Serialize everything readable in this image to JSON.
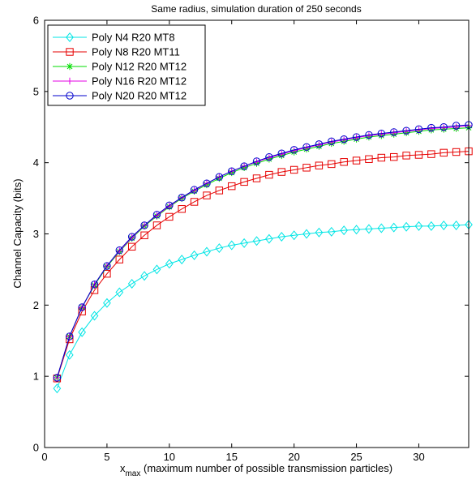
{
  "chart_data": {
    "type": "line",
    "title": "Same radius, simulation duration of 250 seconds",
    "xlabel_main": "x",
    "xlabel_sub": "max",
    "xlabel_rest": " (maximum number of possible transmission particles)",
    "ylabel": "Channel Capacity (bits)",
    "xlim": [
      0,
      34
    ],
    "ylim": [
      0,
      6
    ],
    "xticks": [
      0,
      5,
      10,
      15,
      20,
      25,
      30
    ],
    "yticks": [
      0,
      1,
      2,
      3,
      4,
      5,
      6
    ],
    "grid": false,
    "legend_position": "top-left",
    "x": [
      1,
      2,
      3,
      4,
      5,
      6,
      7,
      8,
      9,
      10,
      11,
      12,
      13,
      14,
      15,
      16,
      17,
      18,
      19,
      20,
      21,
      22,
      23,
      24,
      25,
      26,
      27,
      28,
      29,
      30,
      31,
      32,
      33,
      34
    ],
    "series": [
      {
        "name": "Poly N4 R20 MT8",
        "color": "#00e5e5",
        "marker": "diamond",
        "values": [
          0.83,
          1.3,
          1.62,
          1.85,
          2.03,
          2.18,
          2.3,
          2.41,
          2.5,
          2.58,
          2.64,
          2.7,
          2.75,
          2.8,
          2.84,
          2.87,
          2.9,
          2.93,
          2.96,
          2.98,
          3.0,
          3.02,
          3.03,
          3.05,
          3.06,
          3.07,
          3.08,
          3.09,
          3.1,
          3.11,
          3.11,
          3.12,
          3.12,
          3.13
        ]
      },
      {
        "name": "Poly N8 R20 MT11",
        "color": "#e60000",
        "marker": "square",
        "values": [
          0.97,
          1.52,
          1.91,
          2.21,
          2.44,
          2.64,
          2.82,
          2.98,
          3.12,
          3.24,
          3.35,
          3.45,
          3.54,
          3.61,
          3.67,
          3.73,
          3.78,
          3.83,
          3.87,
          3.9,
          3.93,
          3.96,
          3.98,
          4.01,
          4.03,
          4.05,
          4.07,
          4.08,
          4.1,
          4.11,
          4.12,
          4.14,
          4.15,
          4.16
        ]
      },
      {
        "name": "Poly N12 R20 MT12",
        "color": "#00dd00",
        "marker": "asterisk",
        "values": [
          0.98,
          1.56,
          1.97,
          2.28,
          2.54,
          2.75,
          2.94,
          3.11,
          3.25,
          3.38,
          3.5,
          3.6,
          3.69,
          3.78,
          3.86,
          3.93,
          3.99,
          4.05,
          4.1,
          4.15,
          4.19,
          4.23,
          4.27,
          4.3,
          4.33,
          4.36,
          4.38,
          4.4,
          4.42,
          4.44,
          4.46,
          4.47,
          4.48,
          4.49
        ]
      },
      {
        "name": "Poly N16 R20 MT12",
        "color": "#e600e6",
        "marker": "plus",
        "values": [
          0.98,
          1.56,
          1.97,
          2.29,
          2.55,
          2.76,
          2.95,
          3.12,
          3.26,
          3.39,
          3.51,
          3.61,
          3.71,
          3.8,
          3.88,
          3.95,
          4.01,
          4.07,
          4.12,
          4.17,
          4.21,
          4.25,
          4.29,
          4.32,
          4.35,
          4.38,
          4.4,
          4.42,
          4.44,
          4.46,
          4.48,
          4.49,
          4.5,
          4.52
        ]
      },
      {
        "name": "Poly N20 R20 MT12",
        "color": "#0000cc",
        "marker": "circle",
        "values": [
          0.98,
          1.56,
          1.97,
          2.29,
          2.55,
          2.77,
          2.96,
          3.12,
          3.27,
          3.4,
          3.51,
          3.62,
          3.71,
          3.8,
          3.88,
          3.95,
          4.02,
          4.08,
          4.13,
          4.18,
          4.22,
          4.26,
          4.3,
          4.33,
          4.36,
          4.39,
          4.41,
          4.43,
          4.45,
          4.47,
          4.49,
          4.5,
          4.52,
          4.53
        ]
      }
    ]
  }
}
